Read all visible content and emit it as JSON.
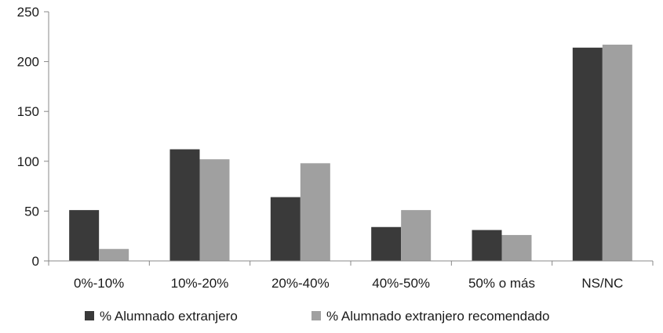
{
  "chart_data": {
    "type": "bar",
    "title": "",
    "xlabel": "",
    "ylabel": "",
    "categories": [
      "0%-10%",
      "10%-20%",
      "20%-40%",
      "40%-50%",
      "50% o más",
      "NS/NC"
    ],
    "series": [
      {
        "name": "% Alumnado extranjero",
        "color": "#3a3a3a",
        "values": [
          51,
          112,
          64,
          34,
          31,
          214
        ]
      },
      {
        "name": "% Alumnado extranjero recomendado",
        "color": "#a0a0a0",
        "values": [
          12,
          102,
          98,
          51,
          26,
          217
        ]
      }
    ],
    "ylim": [
      0,
      250
    ],
    "yticks": [
      0,
      50,
      100,
      150,
      200,
      250
    ],
    "grid": false,
    "legend_position": "bottom"
  }
}
